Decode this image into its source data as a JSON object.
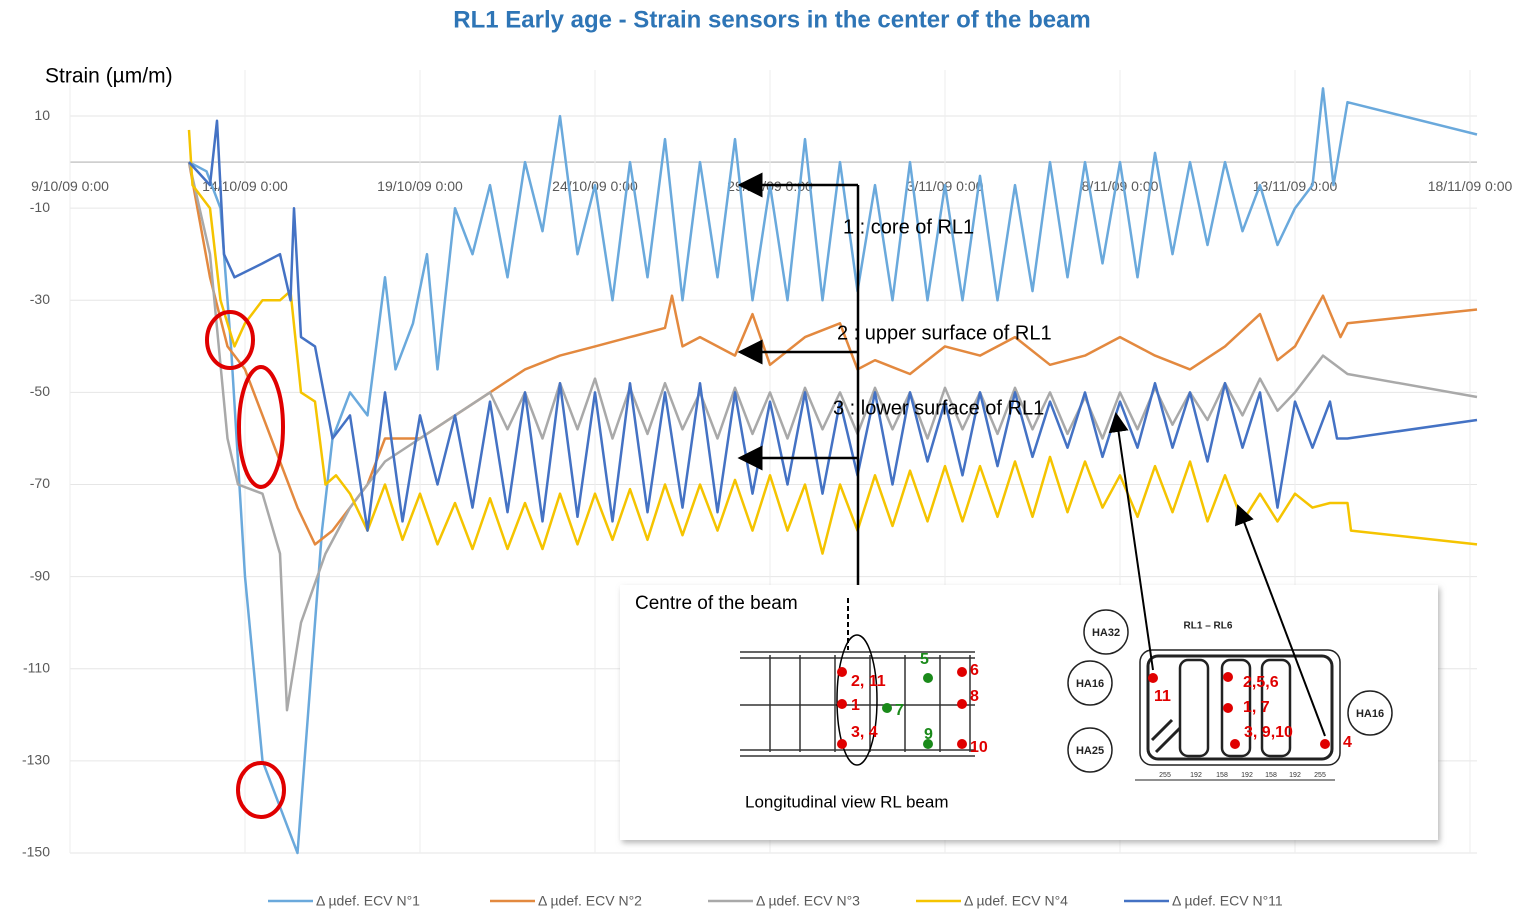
{
  "chart_data": {
    "type": "line",
    "title": "RL1 Early age  -  Strain sensors  in the center of the beam",
    "ylabel": "Strain (µm/m)",
    "xlim": [
      0,
      40.2
    ],
    "ylim": [
      -150,
      20
    ],
    "yticks": [
      10,
      -10,
      -30,
      -50,
      -70,
      -90,
      -110,
      -130,
      -150
    ],
    "xticks": [
      {
        "value": 0,
        "label": "9/10/09 0:00"
      },
      {
        "value": 5,
        "label": "14/10/09 0:00"
      },
      {
        "value": 10,
        "label": "19/10/09 0:00"
      },
      {
        "value": 15,
        "label": "24/10/09 0:00"
      },
      {
        "value": 20,
        "label": "29/10/09 0:00"
      },
      {
        "value": 25,
        "label": "3/11/09 0:00"
      },
      {
        "value": 30,
        "label": "8/11/09 0:00"
      },
      {
        "value": 35,
        "label": "13/11/09 0:00"
      },
      {
        "value": 40,
        "label": "18/11/09 0:00"
      }
    ],
    "grid": true,
    "legend": "bottom",
    "series": [
      {
        "name": "Δ µdef. ECV N°1",
        "color": "#6aa9dc",
        "x": [
          3.4,
          3.9,
          4.3,
          4.6,
          5,
          5.5,
          6,
          6.5,
          6.8,
          7.2,
          7.5,
          8,
          8.5,
          9,
          9.3,
          9.8,
          10.2,
          10.5,
          11,
          11.5,
          12,
          12.5,
          13,
          13.5,
          14,
          14.5,
          15,
          15.5,
          16,
          16.5,
          17,
          17.5,
          18,
          18.5,
          19,
          19.5,
          20,
          20.5,
          21,
          21.5,
          22,
          22.5,
          23,
          23.5,
          24,
          24.5,
          25,
          25.5,
          26,
          26.5,
          27,
          27.5,
          28,
          28.5,
          29,
          29.5,
          30,
          30.5,
          31,
          31.5,
          32,
          32.5,
          33,
          33.5,
          34,
          34.5,
          35,
          35.5,
          35.8,
          36.1,
          36.5,
          40.2
        ],
        "values": [
          0,
          -2,
          -10,
          -40,
          -90,
          -130,
          -140,
          -150,
          -120,
          -80,
          -60,
          -50,
          -55,
          -25,
          -45,
          -35,
          -20,
          -45,
          -10,
          -20,
          -5,
          -25,
          0,
          -15,
          10,
          -20,
          -5,
          -30,
          0,
          -25,
          5,
          -30,
          0,
          -25,
          5,
          -30,
          -5,
          -30,
          5,
          -30,
          0,
          -28,
          -5,
          -30,
          0,
          -30,
          -5,
          -30,
          -3,
          -30,
          -5,
          -28,
          0,
          -25,
          0,
          -22,
          0,
          -25,
          2,
          -20,
          0,
          -18,
          0,
          -15,
          -5,
          -18,
          -10,
          -5,
          16,
          -5,
          13,
          6
        ]
      },
      {
        "name": "Δ µdef. ECV N°2",
        "color": "#e3893f",
        "x": [
          3.4,
          4,
          4.5,
          5,
          5.5,
          6,
          6.5,
          7,
          7.5,
          8,
          8.5,
          9,
          10,
          11,
          12,
          13,
          14,
          15,
          16,
          17,
          17.2,
          17.5,
          18,
          19,
          19.5,
          20,
          21,
          22,
          22.5,
          23,
          24,
          25,
          26,
          27,
          28,
          29,
          30,
          31,
          32,
          33,
          34,
          34.5,
          35,
          35.8,
          36.3,
          36.5,
          40.2
        ],
        "values": [
          0,
          -25,
          -40,
          -45,
          -55,
          -65,
          -75,
          -83,
          -80,
          -75,
          -70,
          -60,
          -60,
          -55,
          -50,
          -45,
          -42,
          -40,
          -38,
          -36,
          -29,
          -40,
          -38,
          -42,
          -33,
          -44,
          -38,
          -35,
          -45,
          -43,
          -46,
          -40,
          -42,
          -38,
          -44,
          -42,
          -38,
          -42,
          -45,
          -40,
          -33,
          -43,
          -40,
          -29,
          -38,
          -35,
          -32
        ]
      },
      {
        "name": "Δ µdef. ECV N°3",
        "color": "#a9a9a9",
        "x": [
          3.4,
          4,
          4.5,
          4.8,
          5.5,
          6,
          6.2,
          6.6,
          7.3,
          8,
          8.5,
          9,
          10,
          11,
          12,
          12.5,
          13,
          13.5,
          14,
          14.5,
          15,
          15.5,
          16,
          16.5,
          17,
          17.5,
          18,
          18.5,
          19,
          19.5,
          20,
          20.5,
          21,
          21.5,
          22,
          22.5,
          23,
          23.5,
          24,
          24.5,
          25,
          25.5,
          26,
          26.5,
          27,
          27.5,
          28,
          28.5,
          29,
          29.5,
          30,
          30.5,
          31,
          31.5,
          32,
          32.5,
          33,
          33.5,
          34,
          34.5,
          35,
          35.8,
          36.5,
          40.2
        ],
        "values": [
          0,
          -20,
          -60,
          -70,
          -72,
          -85,
          -119,
          -100,
          -85,
          -75,
          -70,
          -65,
          -60,
          -55,
          -50,
          -58,
          -50,
          -60,
          -48,
          -58,
          -47,
          -60,
          -49,
          -59,
          -48,
          -58,
          -50,
          -60,
          -49,
          -59,
          -50,
          -60,
          -49,
          -58,
          -50,
          -59,
          -49,
          -58,
          -50,
          -60,
          -49,
          -58,
          -50,
          -59,
          -49,
          -58,
          -50,
          -59,
          -51,
          -60,
          -50,
          -58,
          -49,
          -57,
          -50,
          -56,
          -48,
          -55,
          -47,
          -54,
          -50,
          -42,
          -46,
          -51
        ]
      },
      {
        "name": "Δ µdef. ECV N°4",
        "color": "#f5c400",
        "x": [
          3.4,
          3.5,
          4,
          4.3,
          4.7,
          5,
          5.5,
          6,
          6.3,
          6.6,
          7,
          7.3,
          7.6,
          8,
          8.5,
          9,
          9.5,
          10,
          10.5,
          11,
          11.5,
          12,
          12.5,
          13,
          13.5,
          14,
          14.5,
          15,
          15.5,
          16,
          16.5,
          17,
          17.5,
          18,
          18.5,
          19,
          19.5,
          20,
          20.5,
          21,
          21.5,
          22,
          22.5,
          23,
          23.5,
          24,
          24.5,
          25,
          25.5,
          26,
          26.5,
          27,
          27.5,
          28,
          28.5,
          29,
          29.5,
          30,
          30.5,
          31,
          31.5,
          32,
          32.5,
          33,
          33.5,
          34,
          34.5,
          35,
          35.5,
          36,
          36.5,
          36.6,
          40.2
        ],
        "values": [
          7,
          -5,
          -10,
          -30,
          -40,
          -35,
          -30,
          -30,
          -28,
          -50,
          -52,
          -70,
          -68,
          -72,
          -80,
          -70,
          -82,
          -72,
          -83,
          -74,
          -84,
          -73,
          -84,
          -74,
          -84,
          -72,
          -83,
          -72,
          -82,
          -71,
          -82,
          -70,
          -81,
          -70,
          -80,
          -69,
          -80,
          -68,
          -80,
          -70,
          -85,
          -70,
          -80,
          -68,
          -79,
          -67,
          -78,
          -66,
          -78,
          -66,
          -77,
          -65,
          -77,
          -64,
          -76,
          -65,
          -75,
          -68,
          -77,
          -66,
          -76,
          -65,
          -78,
          -68,
          -78,
          -72,
          -78,
          -72,
          -75,
          -74,
          -74,
          -80,
          -83
        ]
      },
      {
        "name": "Δ µdef. ECV N°11",
        "color": "#4472c4",
        "x": [
          3.4,
          4,
          4.2,
          4.4,
          4.7,
          5.5,
          6,
          6.3,
          6.4,
          6.6,
          7,
          7.5,
          8,
          8.5,
          9,
          9.5,
          10,
          10.5,
          11,
          11.5,
          12,
          12.5,
          13,
          13.5,
          14,
          14.5,
          15,
          15.5,
          16,
          16.5,
          17,
          17.5,
          18,
          18.5,
          19,
          19.5,
          20,
          20.5,
          21,
          21.5,
          22,
          22.5,
          23,
          23.5,
          24,
          24.5,
          25,
          25.5,
          26,
          26.5,
          27,
          27.5,
          28,
          28.5,
          29,
          29.5,
          30,
          30.5,
          31,
          31.5,
          32,
          32.5,
          33,
          33.5,
          34,
          34.5,
          35,
          35.5,
          36,
          36.2,
          36.5,
          40.2
        ],
        "values": [
          0,
          -5,
          9,
          -20,
          -25,
          -22,
          -20,
          -30,
          -10,
          -38,
          -40,
          -60,
          -55,
          -80,
          -50,
          -78,
          -55,
          -70,
          -55,
          -75,
          -52,
          -76,
          -50,
          -78,
          -48,
          -77,
          -50,
          -78,
          -48,
          -76,
          -50,
          -75,
          -48,
          -76,
          -50,
          -72,
          -52,
          -70,
          -50,
          -72,
          -52,
          -68,
          -50,
          -70,
          -50,
          -65,
          -52,
          -68,
          -50,
          -66,
          -50,
          -64,
          -52,
          -62,
          -50,
          -64,
          -52,
          -62,
          -48,
          -62,
          -50,
          -65,
          -48,
          -62,
          -50,
          -75,
          -52,
          -62,
          -52,
          -60,
          -60,
          -56
        ]
      }
    ],
    "annotations": [
      "1 : core of RL1",
      "2 : upper surface of RL1",
      "3 : lower surface of RL1"
    ],
    "inset": {
      "title": "Centre of the beam",
      "caption": "Longitudinal view RL beam",
      "long_labels": [
        "2, 11",
        "1",
        "3, 4",
        "5",
        "7",
        "9",
        "6",
        "8",
        "10"
      ],
      "section_title": "RL1 – RL6",
      "bars": [
        "HA32",
        "HA16",
        "HA25",
        "HA16"
      ],
      "section_labels": [
        "11",
        "2,5,6",
        "1, 7",
        "3, 9,10",
        "4"
      ],
      "dims": [
        "255",
        "192",
        "158",
        "192",
        "158",
        "192",
        "255"
      ]
    }
  }
}
